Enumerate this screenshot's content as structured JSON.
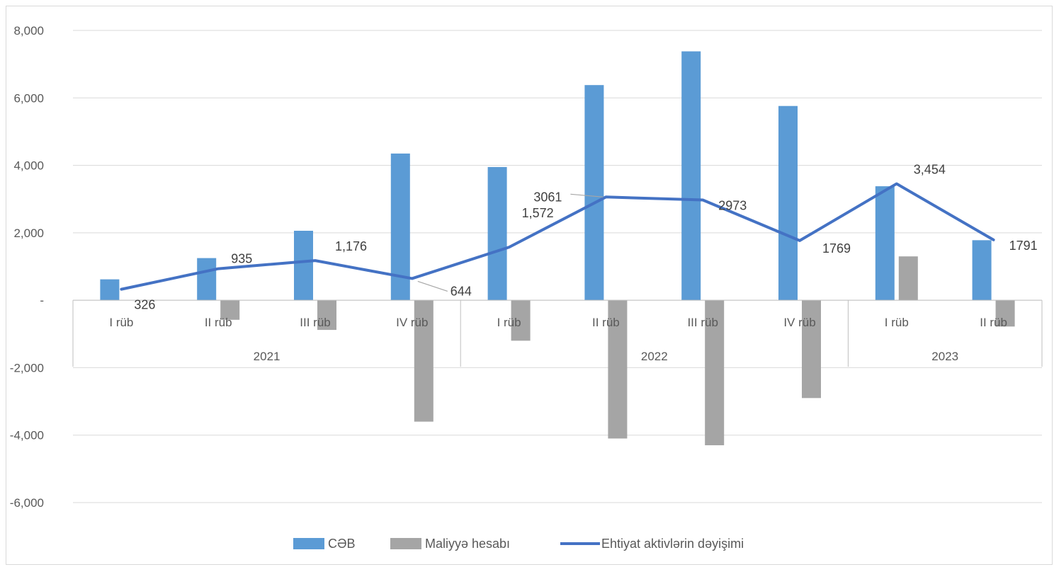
{
  "chart_data": {
    "type": "bar",
    "categories": [
      "I rüb",
      "II rüb",
      "III rüb",
      "IV rüb",
      "I rüb",
      "II rüb",
      "III rüb",
      "IV rüb",
      "I rüb",
      "II rüb"
    ],
    "groups": [
      {
        "label": "2021",
        "count": 4
      },
      {
        "label": "2022",
        "count": 4
      },
      {
        "label": "2023",
        "count": 2
      }
    ],
    "series": [
      {
        "name": "CƏB",
        "kind": "bar",
        "color": "#5b9bd5",
        "values": [
          620,
          1250,
          2060,
          4350,
          3950,
          6380,
          7380,
          5760,
          3380,
          1780
        ]
      },
      {
        "name": "Maliyyə hesabı",
        "kind": "bar",
        "color": "#a5a5a5",
        "values": [
          0,
          -580,
          -880,
          -3600,
          -1200,
          -4100,
          -4300,
          -2900,
          1300,
          -780
        ]
      },
      {
        "name": "Ehtiyat aktivlərin dəyişimi",
        "kind": "line",
        "color": "#4472c4",
        "values": [
          326,
          935,
          1176,
          644,
          1572,
          3061,
          2973,
          1769,
          3454,
          1791
        ],
        "labels": [
          "326",
          "935",
          "1,176",
          "644",
          "1,572",
          "3061",
          "2973",
          "1769",
          "3,454",
          "1791"
        ]
      }
    ],
    "yticks": [
      8000,
      6000,
      4000,
      2000,
      0,
      -2000,
      -4000,
      -6000
    ],
    "ytick_labels": [
      "8,000",
      "6,000",
      "4,000",
      "2,000",
      "-",
      "-2,000",
      "-4,000",
      "-6,000"
    ],
    "ylim": [
      -6000,
      8000
    ],
    "grid": true,
    "legend": "bottom",
    "title": "",
    "xlabel": "",
    "ylabel": ""
  }
}
